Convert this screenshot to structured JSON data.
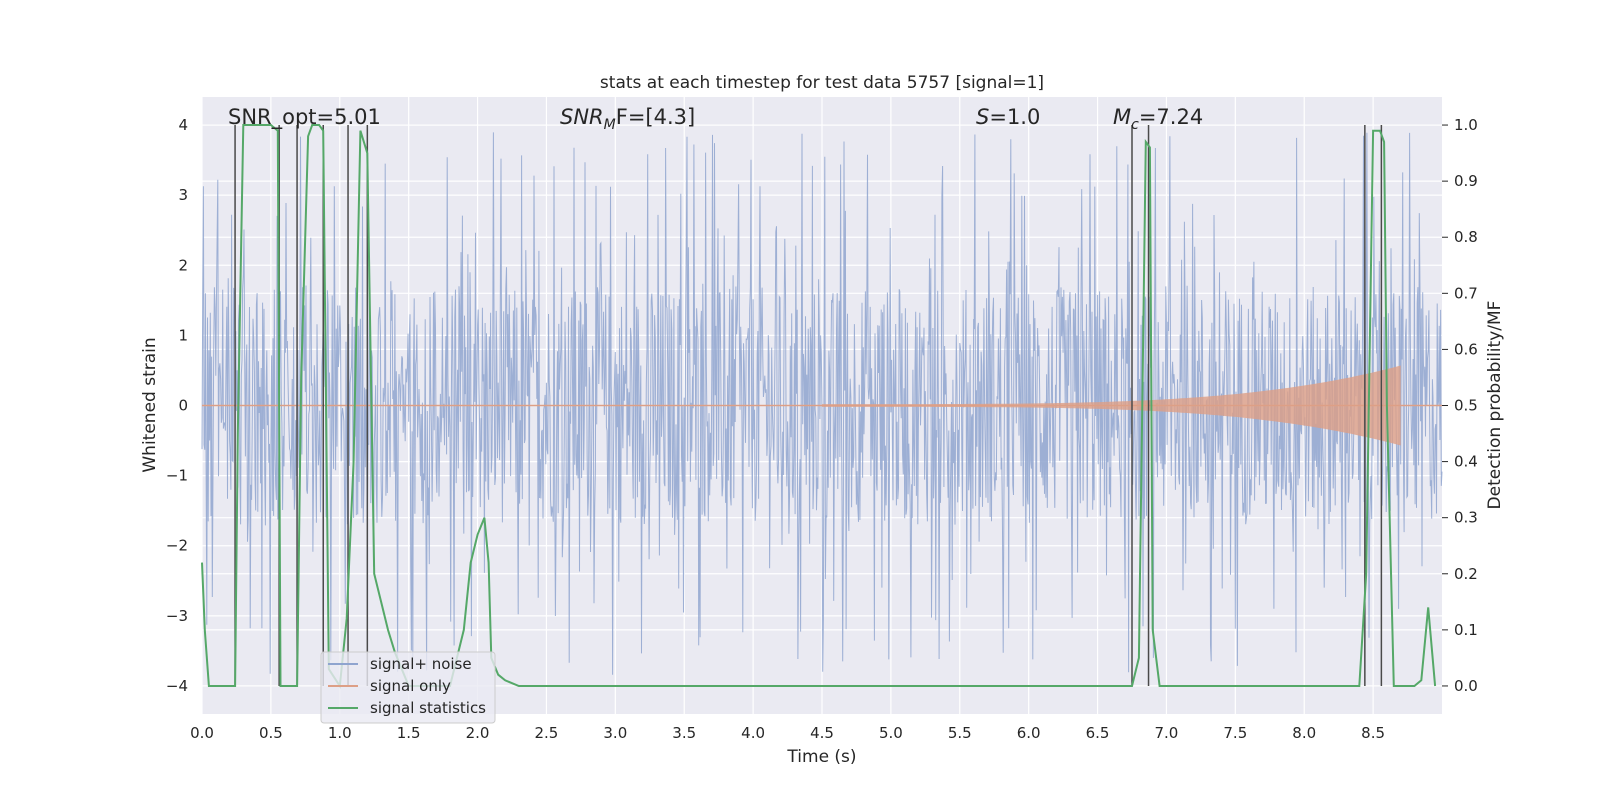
{
  "chart_data": {
    "type": "line",
    "title": "stats at each timestep for test data 5757 [signal=1]",
    "xlabel": "Time (s)",
    "ylabel_left": "Whitened strain",
    "ylabel_right": "Detection probability/MF",
    "xlim": [
      0.0,
      9.0
    ],
    "ylim_left": [
      -4.4,
      4.4
    ],
    "ylim_right": [
      -0.05,
      1.05
    ],
    "x_ticks": [
      "0.0",
      "0.5",
      "1.0",
      "1.5",
      "2.0",
      "2.5",
      "3.0",
      "3.5",
      "4.0",
      "4.5",
      "5.0",
      "5.5",
      "6.0",
      "6.5",
      "7.0",
      "7.5",
      "8.0",
      "8.5"
    ],
    "y_ticks_left": [
      "4",
      "3",
      "2",
      "1",
      "0",
      "−1",
      "−2",
      "−3",
      "−4"
    ],
    "y_ticks_right": [
      "1.0",
      "0.9",
      "0.8",
      "0.7",
      "0.6",
      "0.5",
      "0.4",
      "0.3",
      "0.2",
      "0.1",
      "0.0"
    ],
    "annotations": {
      "snr_opt": "SNR_opt=5.01",
      "snr_mf_main": "SNR",
      "snr_mf_sub": "M",
      "snr_mf_tail": "F=[4.3]",
      "s_main": "S",
      "s_tail": "=1.0",
      "mc_main": "M",
      "mc_sub": "c",
      "mc_tail": "=7.24"
    },
    "legend": {
      "placement": "lower-left",
      "entries": [
        "signal+ noise",
        "signal only",
        "signal statistics"
      ]
    },
    "series": [
      {
        "name": "signal statistics",
        "axis": "right",
        "x": [
          0.0,
          0.02,
          0.05,
          0.1,
          0.2,
          0.24,
          0.26,
          0.3,
          0.4,
          0.5,
          0.55,
          0.57,
          0.6,
          0.65,
          0.69,
          0.72,
          0.77,
          0.8,
          0.85,
          0.88,
          0.92,
          1.0,
          1.05,
          1.1,
          1.15,
          1.2,
          1.25,
          1.3,
          1.35,
          1.4,
          1.5,
          1.6,
          1.7,
          1.8,
          1.9,
          1.95,
          2.0,
          2.05,
          2.08,
          2.1,
          2.15,
          2.2,
          2.3,
          2.5,
          3.0,
          3.5,
          4.0,
          4.5,
          5.0,
          5.5,
          6.0,
          6.5,
          6.75,
          6.8,
          6.85,
          6.88,
          6.9,
          6.95,
          7.0,
          7.5,
          8.0,
          8.4,
          8.45,
          8.5,
          8.55,
          8.58,
          8.6,
          8.65,
          8.7,
          8.8,
          8.85,
          8.9,
          8.95
        ],
        "values": [
          0.22,
          0.1,
          0.0,
          0.0,
          0.0,
          0.0,
          0.45,
          1.0,
          1.0,
          1.0,
          0.99,
          0.0,
          0.0,
          0.0,
          0.0,
          0.55,
          0.98,
          1.0,
          1.0,
          0.99,
          0.03,
          0.0,
          0.12,
          0.4,
          0.99,
          0.95,
          0.2,
          0.15,
          0.1,
          0.06,
          0.0,
          0.0,
          0.0,
          0.0,
          0.1,
          0.22,
          0.27,
          0.3,
          0.22,
          0.05,
          0.02,
          0.01,
          0.0,
          0.0,
          0.0,
          0.0,
          0.0,
          0.0,
          0.0,
          0.0,
          0.0,
          0.0,
          0.0,
          0.05,
          0.97,
          0.96,
          0.1,
          0.0,
          0.0,
          0.0,
          0.0,
          0.0,
          0.2,
          0.99,
          0.99,
          0.97,
          0.5,
          0.0,
          0.0,
          0.0,
          0.01,
          0.14,
          0.0
        ]
      },
      {
        "name": "signal only",
        "axis": "left",
        "description_values": {
          "chirp_start_s": 4.5,
          "chirp_end_s": 8.7,
          "max_amplitude": 0.55
        }
      },
      {
        "name": "signal+ noise",
        "axis": "left",
        "description_values": {
          "typical_amplitude": 1.7,
          "max_amplitude": 3.9
        }
      }
    ],
    "vertical_lines_s": [
      0.24,
      0.56,
      0.69,
      0.88,
      1.06,
      1.2,
      6.75,
      6.87,
      8.44,
      8.56
    ]
  }
}
